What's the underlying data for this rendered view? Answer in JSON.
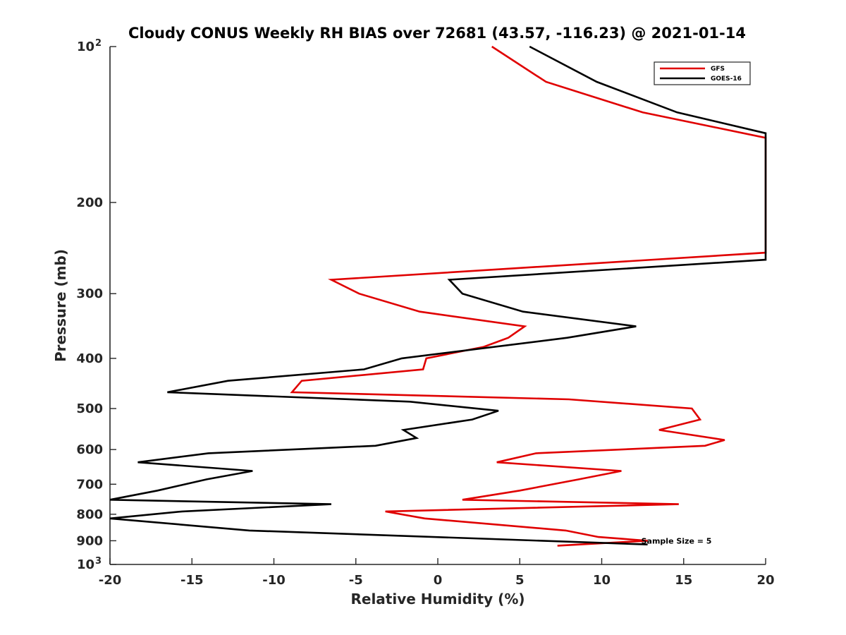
{
  "chart_data": {
    "type": "line",
    "title": "Cloudy CONUS Weekly RH BIAS over 72681 (43.57, -116.23) @ 2021-01-14",
    "xlabel": "Relative Humidity (%)",
    "ylabel": "Pressure (mb)",
    "xlim": [
      -20,
      20
    ],
    "ylim": [
      100,
      1000
    ],
    "yscale": "log",
    "y_reversed": true,
    "grid": false,
    "legend_position": "top-right",
    "xticks": [
      {
        "value": -20,
        "label": "-20"
      },
      {
        "value": -15,
        "label": "-15"
      },
      {
        "value": -10,
        "label": "-10"
      },
      {
        "value": -5,
        "label": "-5"
      },
      {
        "value": 0,
        "label": "0"
      },
      {
        "value": 5,
        "label": "5"
      },
      {
        "value": 10,
        "label": "10"
      },
      {
        "value": 15,
        "label": "15"
      },
      {
        "value": 20,
        "label": "20"
      }
    ],
    "yticks": [
      {
        "value": 100,
        "label": "10",
        "sup": "2"
      },
      {
        "value": 200,
        "label": "200"
      },
      {
        "value": 300,
        "label": "300"
      },
      {
        "value": 400,
        "label": "400"
      },
      {
        "value": 500,
        "label": "500"
      },
      {
        "value": 600,
        "label": "600"
      },
      {
        "value": 700,
        "label": "700"
      },
      {
        "value": 800,
        "label": "800"
      },
      {
        "value": 900,
        "label": "900"
      },
      {
        "value": 1000,
        "label": "10",
        "sup": "3"
      }
    ],
    "series": [
      {
        "name": "GFS",
        "color": "#e00000",
        "points": [
          [
            3.3,
            100
          ],
          [
            6.6,
            117
          ],
          [
            12.5,
            134
          ],
          [
            20,
            150
          ],
          [
            20,
            250
          ],
          [
            -6.5,
            282
          ],
          [
            -4.8,
            300
          ],
          [
            -1.1,
            325
          ],
          [
            5.3,
            347
          ],
          [
            4.3,
            365
          ],
          [
            2.8,
            380
          ],
          [
            -0.7,
            400
          ],
          [
            -0.9,
            420
          ],
          [
            -8.3,
            442
          ],
          [
            -8.9,
            465
          ],
          [
            8,
            480
          ],
          [
            15.5,
            500
          ],
          [
            16,
            525
          ],
          [
            13.5,
            550
          ],
          [
            17.5,
            575
          ],
          [
            16.3,
            590
          ],
          [
            6,
            610
          ],
          [
            3.6,
            635
          ],
          [
            11.2,
            660
          ],
          [
            8.6,
            685
          ],
          [
            5,
            720
          ],
          [
            1.5,
            750
          ],
          [
            14.7,
            765
          ],
          [
            -3.2,
            790
          ],
          [
            -0.8,
            815
          ],
          [
            7.8,
            860
          ],
          [
            9.8,
            885
          ],
          [
            12.8,
            900
          ],
          [
            7.3,
            920
          ]
        ]
      },
      {
        "name": "GOES-16",
        "color": "#000000",
        "points": [
          [
            5.6,
            100
          ],
          [
            9.7,
            117
          ],
          [
            14.6,
            134
          ],
          [
            20,
            147
          ],
          [
            20,
            258
          ],
          [
            0.7,
            282
          ],
          [
            1.5,
            300
          ],
          [
            5.2,
            325
          ],
          [
            12.1,
            347
          ],
          [
            7.9,
            365
          ],
          [
            -2.2,
            400
          ],
          [
            -4.5,
            420
          ],
          [
            -12.8,
            442
          ],
          [
            -16.5,
            465
          ],
          [
            -1.7,
            485
          ],
          [
            3.7,
            505
          ],
          [
            2.1,
            525
          ],
          [
            -2.1,
            550
          ],
          [
            -1.3,
            570
          ],
          [
            -3.8,
            590
          ],
          [
            -14,
            610
          ],
          [
            -18.3,
            635
          ],
          [
            -11.3,
            660
          ],
          [
            -14.1,
            685
          ],
          [
            -17.1,
            720
          ],
          [
            -20,
            750
          ],
          [
            -6.5,
            765
          ],
          [
            -15.6,
            790
          ],
          [
            -20,
            815
          ],
          [
            -11.5,
            860
          ],
          [
            12.8,
            915
          ]
        ]
      }
    ],
    "annotations": [
      {
        "text": "Sample Size = 5",
        "x": 12.5,
        "y": 900
      }
    ]
  }
}
